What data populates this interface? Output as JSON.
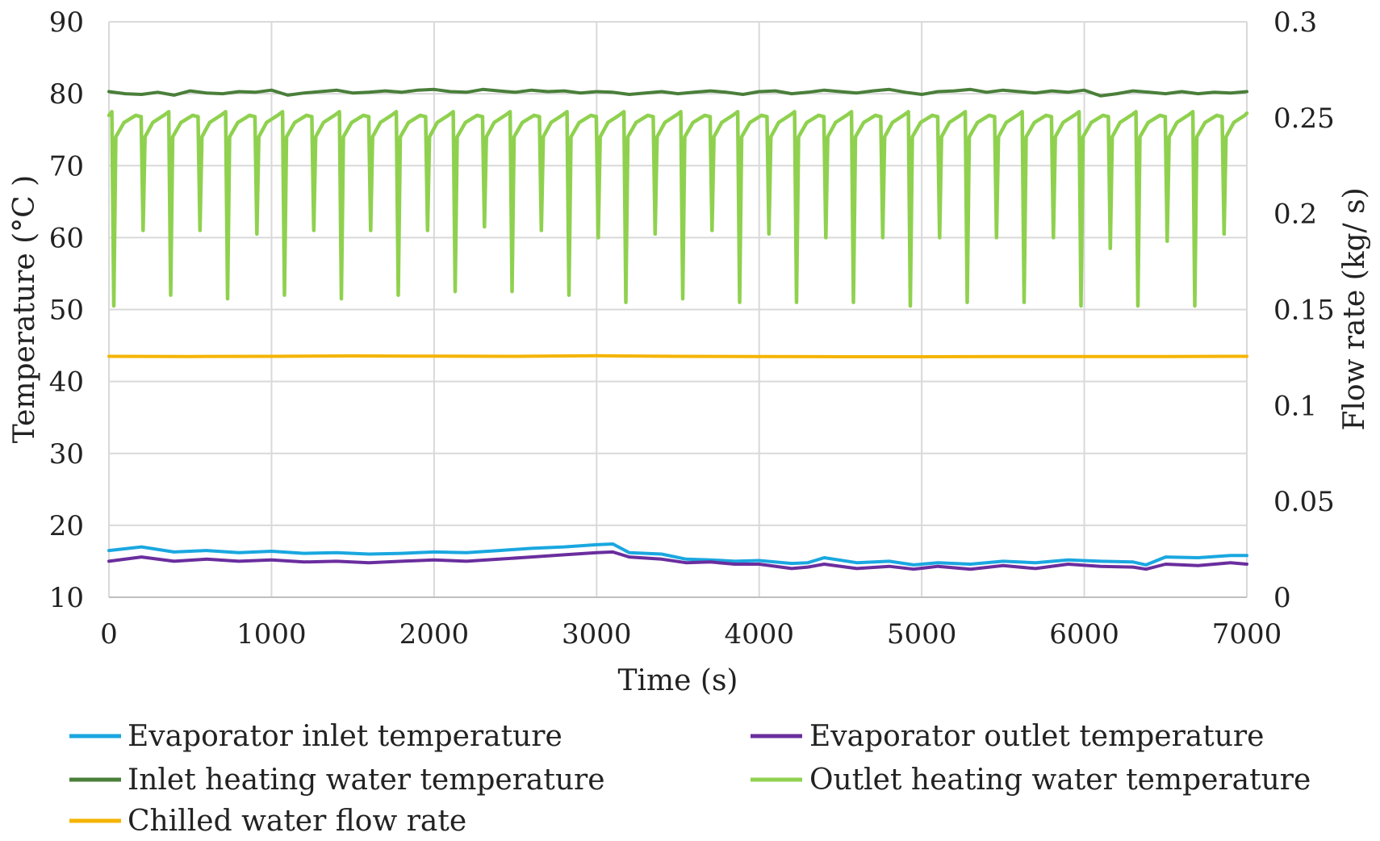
{
  "chart_data": {
    "type": "line",
    "title": "",
    "xlabel": "Time (s)",
    "ylabel": "Temperature (°C )",
    "y2label": "Flow rate (kg/ s)",
    "xlim": [
      0,
      7000
    ],
    "ylim": [
      10,
      90
    ],
    "y2lim": [
      0,
      0.3
    ],
    "grid": true,
    "legend_position": "bottom",
    "x_ticks": [
      0,
      1000,
      2000,
      3000,
      4000,
      5000,
      6000,
      7000
    ],
    "y_ticks": [
      10,
      20,
      30,
      40,
      50,
      60,
      70,
      80,
      90
    ],
    "y2_ticks": [
      "0",
      "0.05",
      "0.1",
      "0.15",
      "0.2",
      "0.25",
      "0.3"
    ],
    "series": [
      {
        "name": "Evaporator inlet temperature",
        "axis": "left",
        "color": "#1aa7e0",
        "x": [
          0,
          200,
          400,
          600,
          800,
          1000,
          1200,
          1400,
          1600,
          1800,
          2000,
          2200,
          2400,
          2600,
          2800,
          3000,
          3100,
          3200,
          3400,
          3550,
          3700,
          3850,
          4000,
          4200,
          4300,
          4400,
          4600,
          4800,
          4950,
          5100,
          5300,
          5500,
          5700,
          5900,
          6100,
          6300,
          6380,
          6500,
          6700,
          6900,
          7000
        ],
        "y": [
          16.5,
          17.0,
          16.3,
          16.5,
          16.2,
          16.4,
          16.1,
          16.2,
          16.0,
          16.1,
          16.3,
          16.2,
          16.5,
          16.8,
          17.0,
          17.3,
          17.4,
          16.2,
          16.0,
          15.3,
          15.2,
          15.0,
          15.1,
          14.7,
          14.8,
          15.5,
          14.8,
          15.0,
          14.5,
          14.8,
          14.6,
          15.0,
          14.8,
          15.2,
          15.0,
          14.9,
          14.5,
          15.6,
          15.5,
          15.8,
          15.8
        ]
      },
      {
        "name": "Evaporator outlet temperature",
        "axis": "left",
        "color": "#6a2e9e",
        "x": [
          0,
          200,
          400,
          600,
          800,
          1000,
          1200,
          1400,
          1600,
          1800,
          2000,
          2200,
          2400,
          2600,
          2800,
          3000,
          3100,
          3200,
          3400,
          3550,
          3700,
          3850,
          4000,
          4200,
          4300,
          4400,
          4600,
          4800,
          4950,
          5100,
          5300,
          5500,
          5700,
          5900,
          6100,
          6300,
          6380,
          6500,
          6700,
          6900,
          7000
        ],
        "y": [
          15.0,
          15.6,
          15.0,
          15.3,
          15.0,
          15.2,
          14.9,
          15.0,
          14.8,
          15.0,
          15.2,
          15.0,
          15.3,
          15.6,
          15.9,
          16.2,
          16.3,
          15.6,
          15.3,
          14.8,
          14.9,
          14.6,
          14.6,
          14.0,
          14.2,
          14.6,
          14.0,
          14.3,
          13.9,
          14.3,
          13.9,
          14.4,
          14.0,
          14.6,
          14.3,
          14.2,
          13.9,
          14.6,
          14.4,
          14.8,
          14.6
        ]
      },
      {
        "name": "Inlet heating water temperature",
        "axis": "left",
        "color": "#4a7f3a",
        "x": [
          0,
          100,
          200,
          300,
          400,
          500,
          600,
          700,
          800,
          900,
          1000,
          1100,
          1200,
          1300,
          1400,
          1500,
          1600,
          1700,
          1800,
          1900,
          2000,
          2100,
          2200,
          2300,
          2400,
          2500,
          2600,
          2700,
          2800,
          2900,
          3000,
          3100,
          3200,
          3300,
          3400,
          3500,
          3600,
          3700,
          3800,
          3900,
          4000,
          4100,
          4200,
          4300,
          4400,
          4500,
          4600,
          4700,
          4800,
          4900,
          5000,
          5100,
          5200,
          5300,
          5400,
          5500,
          5600,
          5700,
          5800,
          5900,
          6000,
          6100,
          6200,
          6300,
          6400,
          6500,
          6600,
          6700,
          6800,
          6900,
          7000
        ],
        "y": [
          80.3,
          80.0,
          79.9,
          80.2,
          79.8,
          80.4,
          80.1,
          80.0,
          80.3,
          80.2,
          80.5,
          79.8,
          80.1,
          80.3,
          80.5,
          80.1,
          80.2,
          80.4,
          80.2,
          80.5,
          80.6,
          80.3,
          80.2,
          80.6,
          80.4,
          80.2,
          80.5,
          80.3,
          80.4,
          80.1,
          80.3,
          80.2,
          79.9,
          80.1,
          80.3,
          80.0,
          80.2,
          80.4,
          80.2,
          79.9,
          80.3,
          80.4,
          80.0,
          80.2,
          80.5,
          80.3,
          80.1,
          80.4,
          80.6,
          80.2,
          79.9,
          80.3,
          80.4,
          80.6,
          80.2,
          80.5,
          80.3,
          80.1,
          80.4,
          80.2,
          80.5,
          79.7,
          80.0,
          80.4,
          80.2,
          80.0,
          80.3,
          80.0,
          80.2,
          80.1,
          80.3
        ]
      },
      {
        "name": "Outlet heating water temperature",
        "axis": "left",
        "color": "#8fd14f",
        "cycle_peak": 77.5,
        "trough_times": [
          30,
          210,
          380,
          560,
          730,
          910,
          1080,
          1260,
          1430,
          1610,
          1780,
          1960,
          2130,
          2310,
          2480,
          2660,
          2830,
          3010,
          3180,
          3360,
          3530,
          3710,
          3880,
          4060,
          4230,
          4410,
          4580,
          4760,
          4930,
          5110,
          5280,
          5460,
          5630,
          5810,
          5980,
          6160,
          6330,
          6510,
          6680,
          6860
        ],
        "trough_values": [
          50.5,
          61.0,
          52.0,
          61.0,
          51.5,
          60.5,
          52.0,
          61.0,
          51.5,
          61.0,
          52.0,
          61.0,
          52.5,
          61.5,
          52.5,
          61.0,
          52.0,
          60.0,
          51.0,
          60.5,
          51.5,
          61.0,
          51.0,
          60.5,
          51.0,
          60.0,
          51.0,
          60.0,
          50.5,
          60.0,
          51.0,
          60.0,
          51.0,
          60.0,
          50.5,
          58.5,
          50.5,
          59.5,
          50.5,
          60.5
        ]
      },
      {
        "name": "Chilled water flow rate",
        "axis": "right",
        "color": "#f5b400",
        "x": [
          0,
          500,
          1000,
          1500,
          2000,
          2500,
          3000,
          3500,
          4000,
          4500,
          5000,
          5500,
          6000,
          6500,
          7000
        ],
        "y": [
          0.1256,
          0.1255,
          0.1256,
          0.1258,
          0.1257,
          0.1256,
          0.1259,
          0.1256,
          0.1255,
          0.1254,
          0.1254,
          0.1255,
          0.1255,
          0.1255,
          0.1256
        ]
      }
    ]
  }
}
